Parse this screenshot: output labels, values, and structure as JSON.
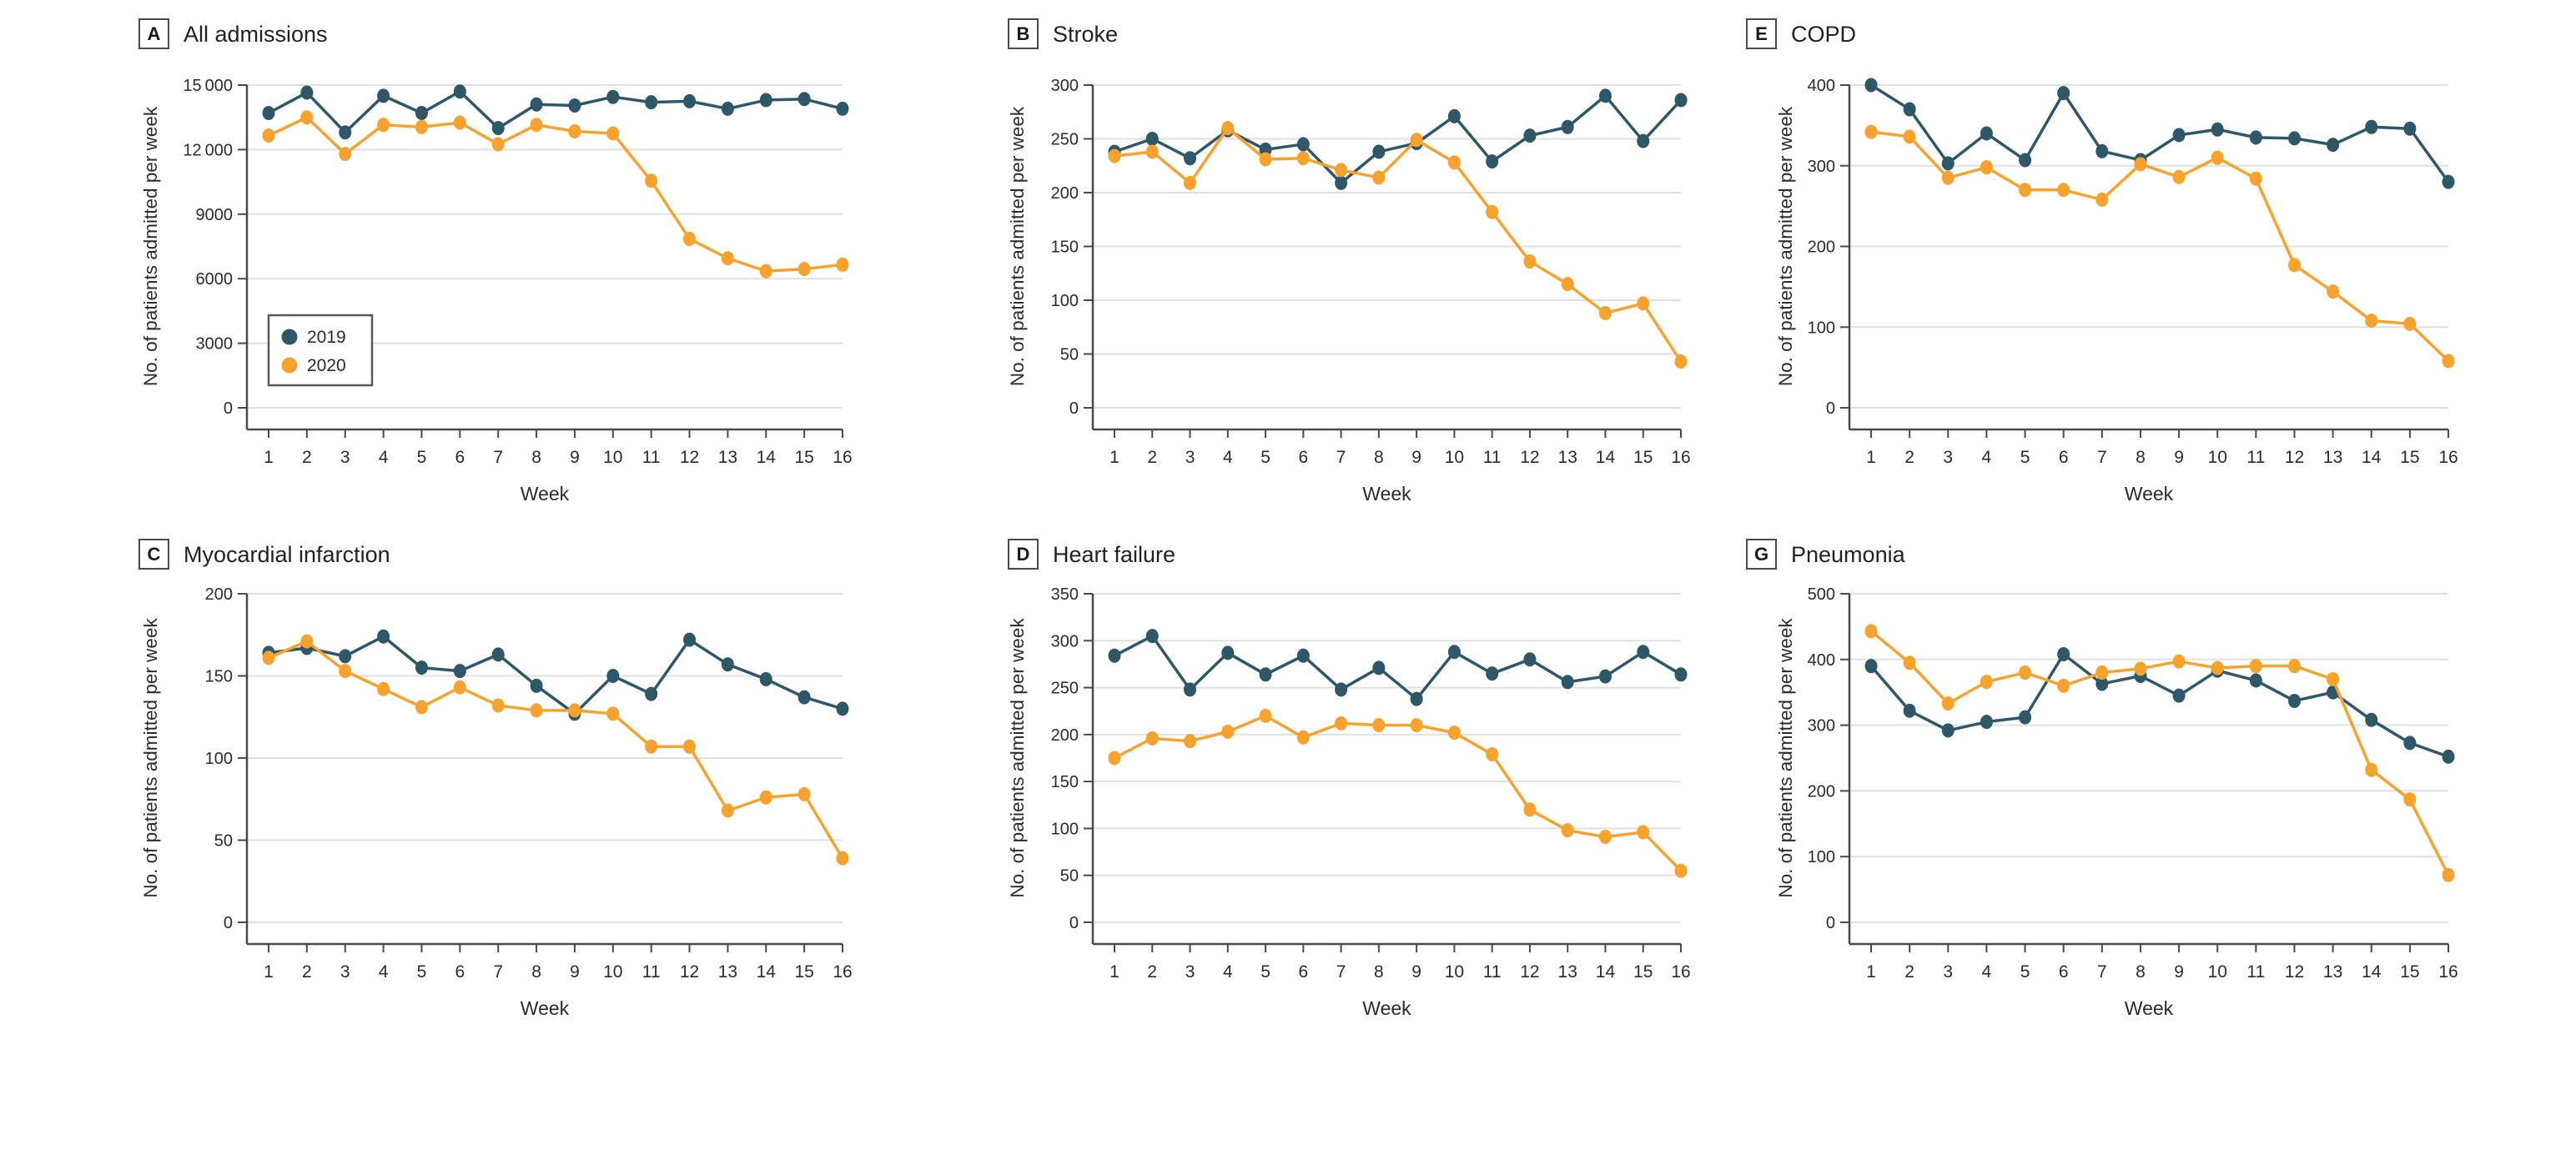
{
  "figure": {
    "colors": {
      "series_2019": "#2E5768",
      "series_2020": "#F6A22D",
      "gridline": "#E0E0E0",
      "axis": "#4A4A4A",
      "text": "#2B2B2B"
    },
    "legend": {
      "entries": [
        {
          "label": "2019",
          "color": "#2E5768"
        },
        {
          "label": "2020",
          "color": "#F6A22D"
        }
      ]
    }
  },
  "chart_data": [
    {
      "type": "line",
      "panel_label": "A",
      "title": "All admissions",
      "xlabel": "Week",
      "ylabel": "No. of patients admitted per week",
      "x": [
        1,
        2,
        3,
        4,
        5,
        6,
        7,
        8,
        9,
        10,
        11,
        12,
        13,
        14,
        15,
        16
      ],
      "ylim": [
        0,
        15000
      ],
      "yticks": [
        0,
        3000,
        6000,
        9000,
        12000,
        15000
      ],
      "ytick_labels": [
        "0",
        "3000",
        "6000",
        "9000",
        "12 000",
        "15 000"
      ],
      "grid": "horizontal",
      "legend_position": "lower-left",
      "series": [
        {
          "name": "2019",
          "color": "#2E5768",
          "values": [
            13700,
            14650,
            12800,
            14500,
            13700,
            14700,
            13000,
            14100,
            14050,
            14450,
            14200,
            14250,
            13900,
            14300,
            14350,
            13900
          ]
        },
        {
          "name": "2020",
          "color": "#F6A22D",
          "values": [
            12650,
            13500,
            11800,
            13150,
            13050,
            13250,
            12250,
            13150,
            12850,
            12750,
            10550,
            7850,
            6950,
            6350,
            6450,
            6650
          ]
        }
      ]
    },
    {
      "type": "line",
      "panel_label": "B",
      "title": "Stroke",
      "xlabel": "Week",
      "ylabel": "No. of patients admitted per week",
      "x": [
        1,
        2,
        3,
        4,
        5,
        6,
        7,
        8,
        9,
        10,
        11,
        12,
        13,
        14,
        15,
        16
      ],
      "ylim": [
        0,
        300
      ],
      "yticks": [
        0,
        50,
        100,
        150,
        200,
        250,
        300
      ],
      "ytick_labels": [
        "0",
        "50",
        "100",
        "150",
        "200",
        "250",
        "300"
      ],
      "grid": "horizontal",
      "legend_position": null,
      "series": [
        {
          "name": "2019",
          "color": "#2E5768",
          "values": [
            238,
            250,
            232,
            258,
            240,
            245,
            209,
            238,
            246,
            271,
            229,
            253,
            261,
            290,
            248,
            286
          ]
        },
        {
          "name": "2020",
          "color": "#F6A22D",
          "values": [
            234,
            238,
            209,
            260,
            231,
            232,
            221,
            214,
            249,
            228,
            182,
            136,
            115,
            88,
            97,
            43
          ]
        }
      ]
    },
    {
      "type": "line",
      "panel_label": "E",
      "title": "COPD",
      "xlabel": "Week",
      "ylabel": "No. of patients admitted per week",
      "x": [
        1,
        2,
        3,
        4,
        5,
        6,
        7,
        8,
        9,
        10,
        11,
        12,
        13,
        14,
        15,
        16
      ],
      "ylim": [
        0,
        400
      ],
      "yticks": [
        0,
        100,
        200,
        300,
        400
      ],
      "ytick_labels": [
        "0",
        "100",
        "200",
        "300",
        "400"
      ],
      "grid": "horizontal",
      "legend_position": null,
      "series": [
        {
          "name": "2019",
          "color": "#2E5768",
          "values": [
            400,
            370,
            303,
            340,
            307,
            390,
            318,
            307,
            338,
            345,
            335,
            334,
            326,
            348,
            346,
            280
          ]
        },
        {
          "name": "2020",
          "color": "#F6A22D",
          "values": [
            342,
            336,
            285,
            298,
            270,
            270,
            258,
            302,
            286,
            310,
            284,
            177,
            144,
            108,
            104,
            58
          ]
        }
      ]
    },
    {
      "type": "line",
      "panel_label": "C",
      "title": "Myocardial infarction",
      "xlabel": "Week",
      "ylabel": "No. of patients admitted per week",
      "x": [
        1,
        2,
        3,
        4,
        5,
        6,
        7,
        8,
        9,
        10,
        11,
        12,
        13,
        14,
        15,
        16
      ],
      "ylim": [
        0,
        200
      ],
      "yticks": [
        0,
        50,
        100,
        150,
        200
      ],
      "ytick_labels": [
        "0",
        "50",
        "100",
        "150",
        "200"
      ],
      "grid": "horizontal",
      "legend_position": null,
      "series": [
        {
          "name": "2019",
          "color": "#2E5768",
          "values": [
            164,
            167,
            162,
            174,
            155,
            153,
            163,
            144,
            127,
            150,
            139,
            172,
            157,
            148,
            137,
            130
          ]
        },
        {
          "name": "2020",
          "color": "#F6A22D",
          "values": [
            161,
            171,
            153,
            142,
            131,
            143,
            132,
            129,
            129,
            127,
            107,
            107,
            68,
            76,
            78,
            39
          ]
        }
      ]
    },
    {
      "type": "line",
      "panel_label": "D",
      "title": "Heart failure",
      "xlabel": "Week",
      "ylabel": "No. of patients admitted per week",
      "x": [
        1,
        2,
        3,
        4,
        5,
        6,
        7,
        8,
        9,
        10,
        11,
        12,
        13,
        14,
        15,
        16
      ],
      "ylim": [
        0,
        350
      ],
      "yticks": [
        0,
        50,
        100,
        150,
        200,
        250,
        300,
        350
      ],
      "ytick_labels": [
        "0",
        "50",
        "100",
        "150",
        "200",
        "250",
        "300",
        "350"
      ],
      "grid": "horizontal",
      "legend_position": null,
      "series": [
        {
          "name": "2019",
          "color": "#2E5768",
          "values": [
            284,
            305,
            248,
            287,
            264,
            284,
            248,
            271,
            238,
            288,
            265,
            280,
            256,
            262,
            288,
            264
          ]
        },
        {
          "name": "2020",
          "color": "#F6A22D",
          "values": [
            175,
            196,
            193,
            203,
            220,
            197,
            212,
            210,
            210,
            202,
            179,
            120,
            98,
            91,
            96,
            55
          ]
        }
      ]
    },
    {
      "type": "line",
      "panel_label": "G",
      "title": "Pneumonia",
      "xlabel": "Week",
      "ylabel": "No. of patients admitted per week",
      "x": [
        1,
        2,
        3,
        4,
        5,
        6,
        7,
        8,
        9,
        10,
        11,
        12,
        13,
        14,
        15,
        16
      ],
      "ylim": [
        0,
        500
      ],
      "yticks": [
        0,
        100,
        200,
        300,
        400,
        500
      ],
      "ytick_labels": [
        "0",
        "100",
        "200",
        "300",
        "400",
        "500"
      ],
      "grid": "horizontal",
      "legend_position": null,
      "series": [
        {
          "name": "2019",
          "color": "#2E5768",
          "values": [
            390,
            322,
            292,
            305,
            312,
            408,
            363,
            375,
            345,
            383,
            368,
            337,
            350,
            308,
            273,
            252
          ]
        },
        {
          "name": "2020",
          "color": "#F6A22D",
          "values": [
            443,
            395,
            333,
            366,
            380,
            360,
            380,
            386,
            397,
            387,
            390,
            390,
            370,
            232,
            187,
            72
          ]
        }
      ]
    }
  ]
}
